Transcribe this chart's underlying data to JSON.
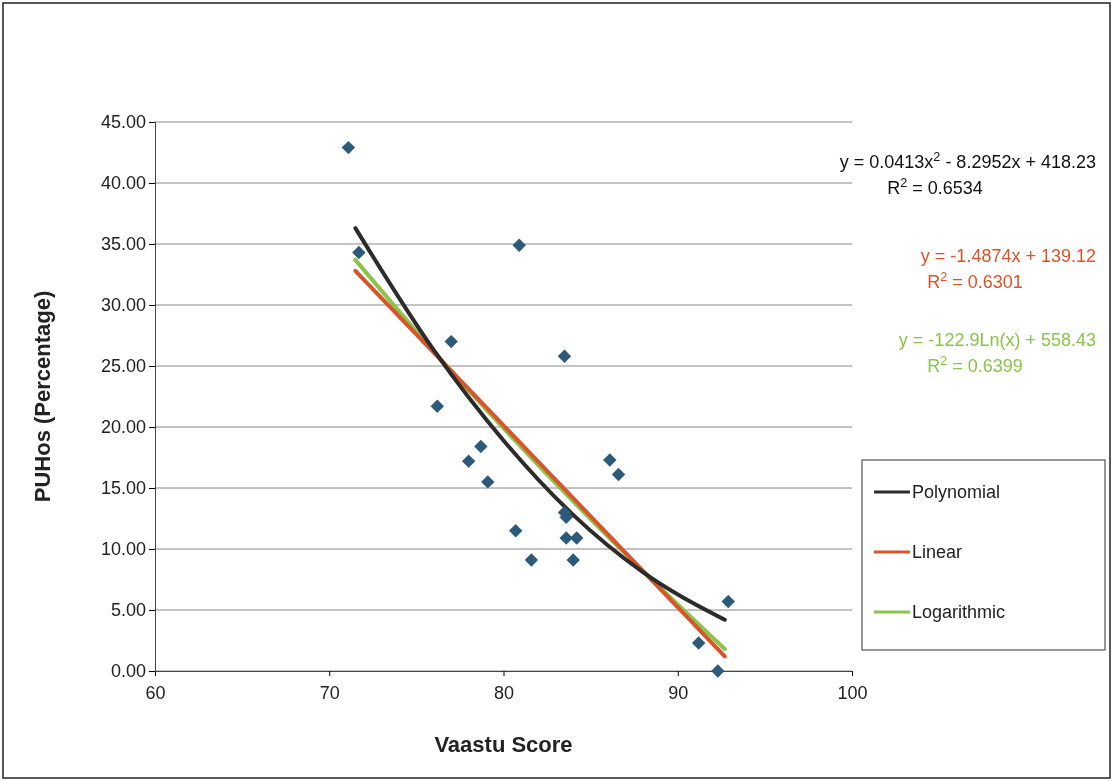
{
  "chart_data": {
    "type": "scatter",
    "xlabel": "Vaastu Score",
    "ylabel": "PUHos (Percentage)",
    "xlim": [
      60,
      100
    ],
    "xticks": [
      60,
      70,
      80,
      90,
      100
    ],
    "ylim": [
      0,
      45
    ],
    "yticks": [
      {
        "value": 0,
        "label": "0.00"
      },
      {
        "value": 5,
        "label": "5.00"
      },
      {
        "value": 10,
        "label": "10.00"
      },
      {
        "value": 15,
        "label": "15.00"
      },
      {
        "value": 20,
        "label": "20.00"
      },
      {
        "value": 25,
        "label": "25.00"
      },
      {
        "value": 30,
        "label": "30.00"
      },
      {
        "value": 35,
        "label": "35.00"
      },
      {
        "value": 40,
        "label": "40.00"
      },
      {
        "value": 45,
        "label": "45.00"
      }
    ],
    "grid": "y",
    "legend": "right",
    "series": [
      {
        "marker": "diamond",
        "color": "#2e5a7a",
        "x": [
          71.1,
          71.7,
          80.9,
          83.5,
          77.0,
          76.2,
          78.7,
          78.0,
          79.1,
          86.1,
          86.6,
          80.7,
          81.6,
          83.5,
          83.6,
          83.6,
          84.2,
          84.0,
          92.9,
          91.2,
          92.3
        ],
        "values": [
          42.9,
          34.3,
          34.9,
          25.8,
          27.0,
          21.7,
          18.4,
          17.2,
          15.5,
          17.3,
          16.1,
          11.5,
          9.1,
          13.0,
          12.6,
          10.9,
          10.9,
          9.1,
          5.7,
          2.3,
          0.0
        ]
      },
      {
        "type": "line",
        "name": "Polynomial",
        "color": "#2b2b2b",
        "marker": "none",
        "x": [
          71.5,
          76,
          80,
          84,
          88,
          92.7
        ],
        "values": [
          36.3,
          26.3,
          18.9,
          12.8,
          8.1,
          4.2
        ]
      },
      {
        "type": "line",
        "name": "Linear",
        "color": "#d9542b",
        "marker": "none",
        "x": [
          71.5,
          92.7
        ],
        "values": [
          32.8,
          1.2
        ]
      },
      {
        "type": "line",
        "name": "Logarithmic",
        "color": "#8cc34b",
        "marker": "none",
        "x": [
          71.5,
          76,
          80,
          84,
          88,
          92.7
        ],
        "values": [
          33.7,
          26.2,
          19.9,
          13.9,
          8.2,
          1.8
        ]
      }
    ],
    "annotations": [
      "y = 0.0413x$^{2}$ - 8.2952x + 418.23\nR$^{2}$ = 0.6534",
      "y = -1.4874x + 139.12\nR$^{2}$ = 0.6301",
      "y = -122.9Ln(x) + 558.43\nR$^{2}$ = 0.6399"
    ]
  }
}
